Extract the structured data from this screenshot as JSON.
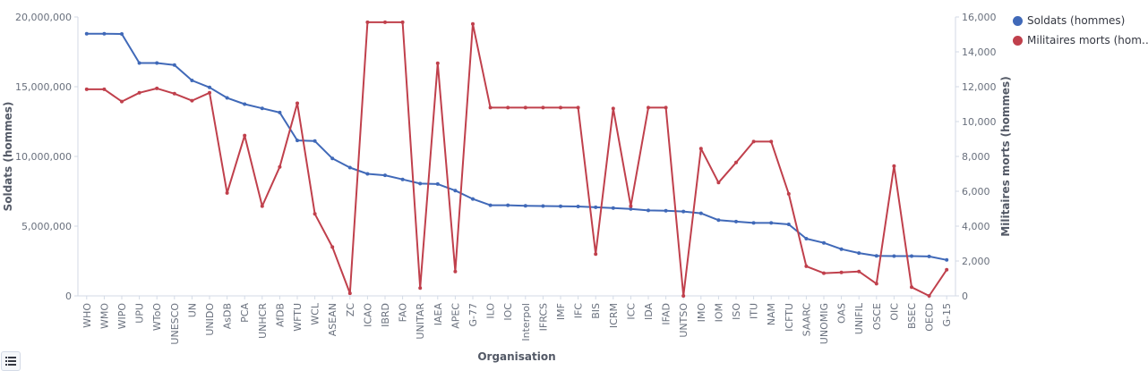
{
  "chart_data": {
    "type": "line",
    "xlabel": "Organisation",
    "ylabel_left": "Soldats (hommes)",
    "ylabel_right": "Militaires morts (hommes)",
    "ylim_left": [
      0,
      20000000
    ],
    "ylim_right": [
      0,
      16000
    ],
    "yticks_left": [
      "0",
      "5,000,000",
      "10,000,000",
      "15,000,000",
      "20,000,000"
    ],
    "yticks_right": [
      "0",
      "2,000",
      "4,000",
      "6,000",
      "8,000",
      "10,000",
      "12,000",
      "14,000",
      "16,000"
    ],
    "grid": false,
    "legend_position": "top-right",
    "categories": [
      "WHO",
      "WMO",
      "WIPO",
      "UPU",
      "WToO",
      "UNESCO",
      "UN",
      "UNIDO",
      "AsDB",
      "PCA",
      "UNHCR",
      "AfDB",
      "WFTU",
      "WCL",
      "ASEAN",
      "ZC",
      "ICAO",
      "IBRD",
      "FAO",
      "UNITAR",
      "IAEA",
      "APEC",
      "G-77",
      "ILO",
      "IOC",
      "Interpol",
      "IFRCS",
      "IMF",
      "IFC",
      "BIS",
      "ICRM",
      "ICC",
      "IDA",
      "IFAD",
      "UNTSO",
      "IMO",
      "IOM",
      "ISO",
      "ITU",
      "NAM",
      "ICFTU",
      "SAARC",
      "UNOMIG",
      "OAS",
      "UNIFIL",
      "OSCE",
      "OIC",
      "BSEC",
      "OECD",
      "G-15"
    ],
    "series": [
      {
        "name": "Soldats (hommes)",
        "axis": "left",
        "color": "#4069b8",
        "values": [
          18800000,
          18800000,
          18780000,
          16700000,
          16700000,
          16550000,
          15450000,
          14950000,
          14200000,
          13750000,
          13450000,
          13150000,
          11150000,
          11100000,
          9850000,
          9200000,
          8750000,
          8650000,
          8350000,
          8050000,
          8020000,
          7550000,
          6950000,
          6500000,
          6500000,
          6460000,
          6440000,
          6420000,
          6410000,
          6350000,
          6300000,
          6230000,
          6130000,
          6100000,
          6050000,
          5920000,
          5430000,
          5330000,
          5230000,
          5230000,
          5130000,
          4100000,
          3800000,
          3350000,
          3070000,
          2870000,
          2850000,
          2850000,
          2830000,
          2580000
        ]
      },
      {
        "name": "Militaires morts (hommes)",
        "axis": "right",
        "color": "#c0404c",
        "values": [
          11850,
          11850,
          11150,
          11650,
          11900,
          11600,
          11200,
          11650,
          5900,
          9200,
          5150,
          7400,
          11050,
          4700,
          2800,
          150,
          15700,
          15700,
          15700,
          450,
          13350,
          1400,
          15600,
          10800,
          10800,
          10800,
          10800,
          10800,
          10800,
          2400,
          10750,
          5150,
          10800,
          10800,
          0,
          8450,
          6500,
          7650,
          8850,
          8850,
          5850,
          1700,
          1300,
          1350,
          1400,
          700,
          7450,
          500,
          0,
          1500
        ]
      }
    ]
  },
  "ui": {
    "legend_toggle_icon": "list-icon"
  }
}
